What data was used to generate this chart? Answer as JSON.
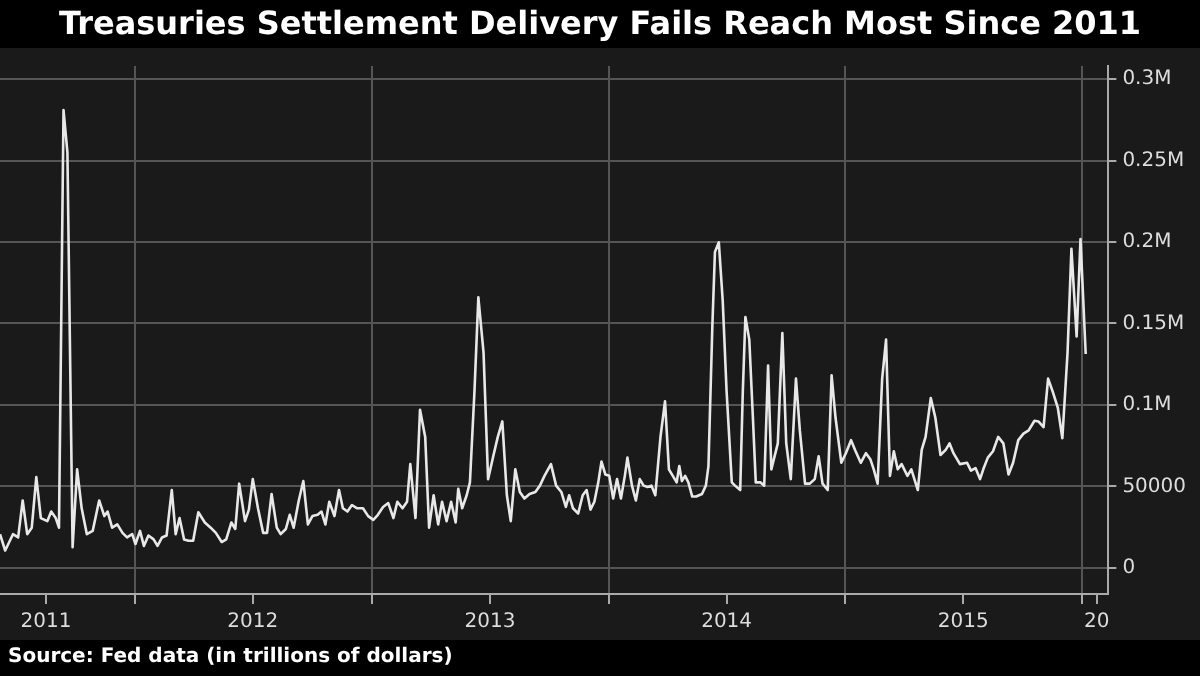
{
  "chart_data": {
    "type": "line",
    "title": "Treasuries Settlement Delivery Fails Reach Most Since 2011",
    "annotations": [
      "Source: Fed data (in trillions of dollars)"
    ],
    "x": [
      "2011-06-07",
      "2011-06-15",
      "2011-06-27",
      "2011-07-05",
      "2011-07-12",
      "2011-07-19",
      "2011-07-26",
      "2011-08-02",
      "2011-08-09",
      "2011-08-19",
      "2011-08-25",
      "2011-09-01",
      "2011-09-06",
      "2011-09-13",
      "2011-09-19",
      "2011-09-27",
      "2011-10-04",
      "2011-10-11",
      "2011-10-19",
      "2011-10-28",
      "2011-11-07",
      "2011-11-15",
      "2011-11-20",
      "2011-11-27",
      "2011-12-05",
      "2011-12-13",
      "2011-12-20",
      "2011-12-28",
      "2012-01-02",
      "2012-01-09",
      "2012-01-15",
      "2012-01-22",
      "2012-01-30",
      "2012-02-05",
      "2012-02-12",
      "2012-02-19",
      "2012-02-27",
      "2012-03-04",
      "2012-03-10",
      "2012-03-17",
      "2012-03-24",
      "2012-03-31",
      "2012-04-08",
      "2012-04-18",
      "2012-04-27",
      "2012-05-05",
      "2012-05-14",
      "2012-05-21",
      "2012-05-29",
      "2012-06-04",
      "2012-06-10",
      "2012-06-19",
      "2012-06-25",
      "2012-07-01",
      "2012-07-09",
      "2012-07-17",
      "2012-07-23",
      "2012-07-30",
      "2012-08-07",
      "2012-08-13",
      "2012-08-21",
      "2012-08-27",
      "2012-09-02",
      "2012-09-10",
      "2012-09-17",
      "2012-09-24",
      "2012-10-01",
      "2012-10-09",
      "2012-10-15",
      "2012-10-21",
      "2012-10-27",
      "2012-11-04",
      "2012-11-11",
      "2012-11-17",
      "2012-11-24",
      "2012-12-01",
      "2012-12-09",
      "2012-12-18",
      "2012-12-26",
      "2013-01-03",
      "2013-01-10",
      "2013-01-18",
      "2013-01-26",
      "2013-02-03",
      "2013-02-09",
      "2013-02-17",
      "2013-02-24",
      "2013-03-01",
      "2013-03-09",
      "2013-03-16",
      "2013-03-24",
      "2013-03-30",
      "2013-04-06",
      "2013-04-13",
      "2013-04-19",
      "2013-04-26",
      "2013-05-03",
      "2013-05-10",
      "2013-05-14",
      "2013-05-20",
      "2013-05-27",
      "2013-06-01",
      "2013-06-08",
      "2013-06-14",
      "2013-06-22",
      "2013-06-29",
      "2013-07-07",
      "2013-07-14",
      "2013-07-21",
      "2013-07-28",
      "2013-08-03",
      "2013-08-10",
      "2013-08-17",
      "2013-08-24",
      "2013-09-01",
      "2013-09-10",
      "2013-09-17",
      "2013-09-24",
      "2013-10-04",
      "2013-10-12",
      "2013-10-20",
      "2013-10-27",
      "2013-11-01",
      "2013-11-07",
      "2013-11-15",
      "2013-11-22",
      "2013-11-28",
      "2013-12-04",
      "2013-12-10",
      "2013-12-16",
      "2013-12-21",
      "2013-12-27",
      "2014-01-02",
      "2014-01-08",
      "2014-01-14",
      "2014-01-20",
      "2014-01-26",
      "2014-01-30",
      "2014-02-06",
      "2014-02-12",
      "2014-02-18",
      "2014-02-24",
      "2014-03-02",
      "2014-03-08",
      "2014-03-14",
      "2014-03-22",
      "2014-03-29",
      "2014-04-04",
      "2014-04-10",
      "2014-04-16",
      "2014-04-20",
      "2014-04-24",
      "2014-04-29",
      "2014-05-04",
      "2014-05-10",
      "2014-05-16",
      "2014-05-25",
      "2014-05-31",
      "2014-06-04",
      "2014-06-10",
      "2014-06-14",
      "2014-06-20",
      "2014-06-26",
      "2014-07-02",
      "2014-07-10",
      "2014-07-15",
      "2014-07-23",
      "2014-07-27",
      "2014-07-31",
      "2014-08-06",
      "2014-08-12",
      "2014-08-16",
      "2014-08-23",
      "2014-08-29",
      "2014-09-04",
      "2014-09-09",
      "2014-09-19",
      "2014-09-26",
      "2014-10-02",
      "2014-10-09",
      "2014-10-17",
      "2014-10-23",
      "2014-10-31",
      "2014-11-07",
      "2014-11-15",
      "2014-11-21",
      "2014-11-27",
      "2014-12-05",
      "2014-12-11",
      "2014-12-17",
      "2014-12-26",
      "2015-01-02",
      "2015-01-10",
      "2015-01-17",
      "2015-01-25",
      "2015-02-02",
      "2015-02-09",
      "2015-02-14",
      "2015-02-20",
      "2015-02-27",
      "2015-03-05",
      "2015-03-11",
      "2015-03-17",
      "2015-03-23",
      "2015-03-29",
      "2015-04-07",
      "2015-04-13",
      "2015-04-23",
      "2015-04-29",
      "2015-05-05",
      "2015-05-13",
      "2015-05-20",
      "2015-05-28",
      "2015-06-05",
      "2015-06-11",
      "2015-06-17",
      "2015-06-27",
      "2015-07-08",
      "2015-07-14",
      "2015-07-21",
      "2015-07-28",
      "2015-08-02",
      "2015-08-09",
      "2015-08-17",
      "2015-08-25",
      "2015-09-02",
      "2015-09-10",
      "2015-09-17",
      "2015-09-25",
      "2015-10-03",
      "2015-10-11",
      "2015-10-20",
      "2015-10-26",
      "2015-11-03",
      "2015-11-10",
      "2015-11-17",
      "2015-11-25",
      "2015-12-02",
      "2015-12-10",
      "2015-12-16",
      "2015-12-24",
      "2015-12-30",
      "2016-01-07"
    ],
    "series": [
      {
        "color": "#e8e8e8",
        "values": [
          20700,
          10700,
          20700,
          18700,
          41400,
          20700,
          24700,
          55700,
          30600,
          28700,
          34600,
          30600,
          24700,
          281000,
          255000,
          12700,
          60500,
          36600,
          20700,
          22700,
          41400,
          31800,
          34600,
          24700,
          26700,
          21500,
          18700,
          20700,
          14700,
          22700,
          13500,
          19900,
          17500,
          13500,
          18700,
          19900,
          47800,
          20700,
          30600,
          17500,
          16700,
          16700,
          34200,
          27900,
          24700,
          21500,
          15900,
          17500,
          27900,
          23900,
          51700,
          28700,
          35800,
          54500,
          36600,
          21500,
          21500,
          45400,
          24700,
          20700,
          23900,
          32600,
          24700,
          41400,
          53300,
          26700,
          31800,
          32600,
          34600,
          26700,
          40600,
          31800,
          47800,
          36600,
          34600,
          38600,
          36600,
          36600,
          31800,
          29500,
          32600,
          37400,
          39800,
          30600,
          40600,
          36600,
          40600,
          63700,
          30600,
          97100,
          80400,
          24700,
          44600,
          26700,
          40600,
          28700,
          40600,
          27900,
          48600,
          36600,
          44600,
          52500,
          108300,
          166000,
          132100,
          54500,
          68500,
          80400,
          89900,
          44600,
          28700,
          60500,
          46600,
          42600,
          45400,
          46600,
          50500,
          56500,
          63700,
          50500,
          46600,
          37400,
          44600,
          36600,
          33400,
          44600,
          47800,
          35800,
          40600,
          52500,
          65300,
          57300,
          56500,
          42600,
          54500,
          42600,
          56500,
          67700,
          50500,
          41400,
          54500,
          50500,
          49700,
          50500,
          44600,
          80400,
          102300,
          60500,
          56500,
          52500,
          62500,
          53300,
          56500,
          52500,
          43800,
          43800,
          45400,
          50500,
          62500,
          148100,
          193800,
          199800,
          164000,
          108300,
          52500,
          50500,
          47800,
          108300,
          154000,
          140100,
          88300,
          52500,
          52500,
          50500,
          124200,
          60500,
          76400,
          144100,
          76400,
          54500,
          116200,
          84400,
          51700,
          51700,
          54500,
          68500,
          51700,
          47800,
          118200,
          92300,
          64500,
          70400,
          78400,
          71600,
          64500,
          70400,
          66500,
          60500,
          51700,
          116200,
          140100,
          56500,
          71600,
          60500,
          63700,
          56500,
          60500,
          47800,
          72400,
          80400,
          104300,
          92300,
          69300,
          72400,
          76400,
          70400,
          63700,
          64500,
          59700,
          61300,
          54500,
          60500,
          67700,
          71600,
          80400,
          76400,
          57300,
          64500,
          78400,
          82400,
          84400,
          90300,
          89900,
          86400,
          116200,
          108300,
          98300,
          79600,
          132100,
          195800,
          142100,
          201800,
          131300
        ]
      }
    ],
    "xlim": [
      "2011-06-07",
      "2016-02-11"
    ],
    "xticks": [
      {
        "value": "2012-01-01",
        "label": null
      },
      {
        "value": "2013-01-01",
        "label": null
      },
      {
        "value": "2014-01-01",
        "label": null
      },
      {
        "value": "2015-01-01",
        "label": null
      },
      {
        "value": "2016-01-01",
        "label": null
      },
      {
        "value": "2011-08-17",
        "label": "2011"
      },
      {
        "value": "2012-07-01",
        "label": "2012"
      },
      {
        "value": "2013-07-02",
        "label": "2013"
      },
      {
        "value": "2014-07-02",
        "label": "2014"
      },
      {
        "value": "2015-07-02",
        "label": "2015"
      },
      {
        "value": "2016-01-24",
        "label": "20"
      }
    ],
    "ylim": [
      -16000,
      308000
    ],
    "yticks": [
      0,
      50000,
      {
        "value": 100000,
        "label": "0.1M"
      },
      {
        "value": 150000,
        "label": "0.15M"
      },
      {
        "value": 200000,
        "label": "0.2M"
      },
      {
        "value": 250000,
        "label": "0.25M"
      },
      {
        "value": 300000,
        "label": "0.3M"
      }
    ],
    "grid": true
  }
}
